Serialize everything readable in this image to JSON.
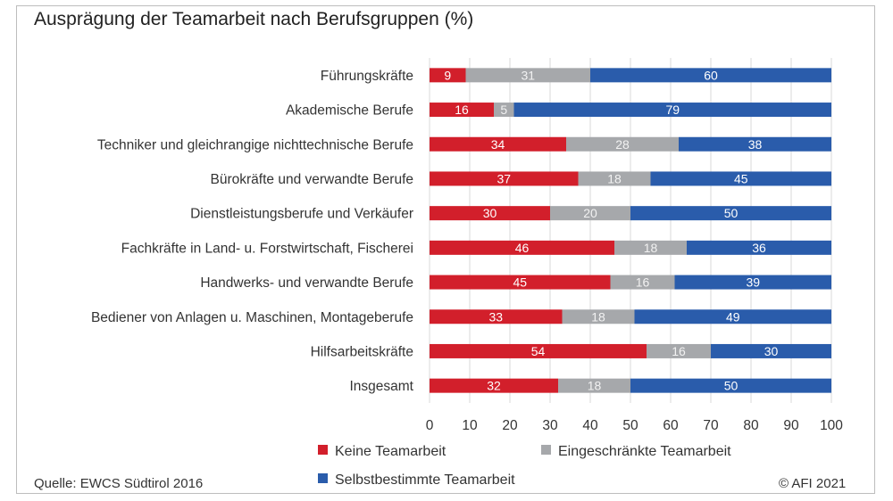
{
  "title": "Ausprägung der Teamarbeit nach Berufsgruppen (%)",
  "source": "Quelle: EWCS Südtirol 2016",
  "copyright": "© AFI 2021",
  "colors": {
    "keine": "#d21f2b",
    "eingeschraenkt": "#a6a8ab",
    "selbstbestimmt": "#2a5cab"
  },
  "chart_data": {
    "type": "bar",
    "orientation": "horizontal",
    "stacked": true,
    "categories": [
      "Führungskräfte",
      "Akademische Berufe",
      "Techniker und gleichrangige nichttechnische Berufe",
      "Bürokräfte und verwandte Berufe",
      "Dienstleistungsberufe und Verkäufer",
      "Fachkräfte in Land- u. Forstwirtschaft, Fischerei",
      "Handwerks- und verwandte Berufe",
      "Bediener von Anlagen u. Maschinen, Montageberufe",
      "Hilfsarbeitskräfte",
      "Insgesamt"
    ],
    "series": [
      {
        "name": "Keine Teamarbeit",
        "values": [
          9,
          16,
          34,
          37,
          30,
          46,
          45,
          33,
          54,
          32
        ]
      },
      {
        "name": "Eingeschränkte Teamarbeit",
        "values": [
          31,
          5,
          28,
          18,
          20,
          18,
          16,
          18,
          16,
          18
        ]
      },
      {
        "name": "Selbstbestimmte Teamarbeit",
        "values": [
          60,
          79,
          38,
          45,
          50,
          36,
          39,
          49,
          30,
          50
        ]
      }
    ],
    "xlim": [
      0,
      100
    ],
    "xticks": [
      0,
      10,
      20,
      30,
      40,
      50,
      60,
      70,
      80,
      90,
      100
    ],
    "grid": "vertical",
    "legend_position": "bottom"
  }
}
